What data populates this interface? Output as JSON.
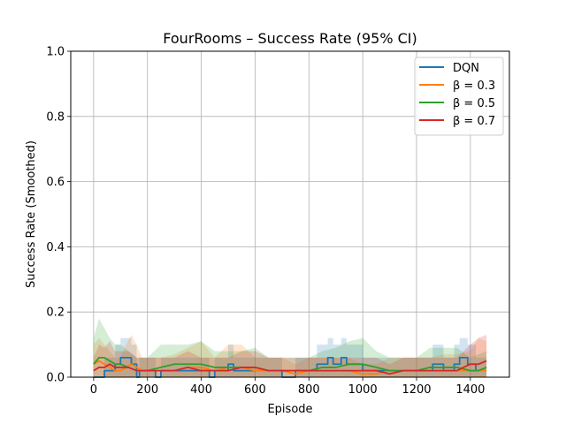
{
  "chart_data": {
    "type": "line",
    "title": "FourRooms – Success Rate (95% CI)",
    "xlabel": "Episode",
    "ylabel": "Success Rate (Smoothed)",
    "xlim": [
      -85,
      1545
    ],
    "ylim": [
      0,
      1.0
    ],
    "xticks": [
      0,
      200,
      400,
      600,
      800,
      1000,
      1200,
      1400
    ],
    "yticks": [
      0.0,
      0.2,
      0.4,
      0.6,
      0.8,
      1.0
    ],
    "xtick_labels": [
      "0",
      "200",
      "400",
      "600",
      "800",
      "1000",
      "1200",
      "1400"
    ],
    "ytick_labels": [
      "0.0",
      "0.2",
      "0.4",
      "0.6",
      "0.8",
      "1.0"
    ],
    "grid": true,
    "legend_position": "top-right",
    "series": [
      {
        "name": "DQN",
        "color": "#1f77b4",
        "step": true,
        "x": [
          0,
          30,
          40,
          80,
          100,
          140,
          160,
          170,
          200,
          230,
          250,
          300,
          350,
          400,
          430,
          450,
          500,
          520,
          560,
          600,
          650,
          700,
          750,
          800,
          830,
          870,
          890,
          920,
          940,
          980,
          1000,
          1050,
          1100,
          1150,
          1200,
          1230,
          1260,
          1300,
          1340,
          1360,
          1390,
          1420,
          1440,
          1460
        ],
        "y": [
          0.0,
          0.0,
          0.02,
          0.04,
          0.06,
          0.04,
          0.0,
          0.02,
          0.02,
          0.0,
          0.02,
          0.02,
          0.02,
          0.02,
          0.0,
          0.02,
          0.04,
          0.02,
          0.02,
          0.02,
          0.02,
          0.0,
          0.02,
          0.02,
          0.04,
          0.06,
          0.04,
          0.06,
          0.04,
          0.04,
          0.02,
          0.02,
          0.02,
          0.02,
          0.02,
          0.02,
          0.04,
          0.02,
          0.04,
          0.06,
          0.04,
          0.02,
          0.02,
          0.02
        ],
        "ci_upper": [
          0.0,
          0.0,
          0.06,
          0.1,
          0.12,
          0.1,
          0.0,
          0.06,
          0.06,
          0.0,
          0.06,
          0.06,
          0.06,
          0.06,
          0.0,
          0.06,
          0.1,
          0.06,
          0.06,
          0.06,
          0.06,
          0.0,
          0.06,
          0.06,
          0.1,
          0.12,
          0.1,
          0.12,
          0.1,
          0.1,
          0.06,
          0.06,
          0.06,
          0.06,
          0.06,
          0.06,
          0.1,
          0.06,
          0.1,
          0.12,
          0.1,
          0.06,
          0.06,
          0.06
        ],
        "ci_lower": [
          0.0,
          0.0,
          0.0,
          0.0,
          0.0,
          0.0,
          0.0,
          0.0,
          0.0,
          0.0,
          0.0,
          0.0,
          0.0,
          0.0,
          0.0,
          0.0,
          0.0,
          0.0,
          0.0,
          0.0,
          0.0,
          0.0,
          0.0,
          0.0,
          0.0,
          0.0,
          0.0,
          0.0,
          0.0,
          0.0,
          0.0,
          0.0,
          0.0,
          0.0,
          0.0,
          0.0,
          0.0,
          0.0,
          0.0,
          0.0,
          0.0,
          0.0,
          0.0,
          0.0
        ]
      },
      {
        "name": "β = 0.3",
        "color": "#ff7f0e",
        "step": false,
        "x": [
          0,
          20,
          40,
          60,
          80,
          100,
          120,
          140,
          160,
          180,
          200,
          250,
          300,
          350,
          400,
          450,
          500,
          550,
          600,
          650,
          700,
          750,
          800,
          850,
          900,
          950,
          1000,
          1050,
          1100,
          1150,
          1200,
          1250,
          1300,
          1350,
          1400,
          1430,
          1460
        ],
        "y": [
          0.04,
          0.05,
          0.04,
          0.03,
          0.02,
          0.02,
          0.03,
          0.04,
          0.03,
          0.02,
          0.02,
          0.02,
          0.02,
          0.03,
          0.03,
          0.02,
          0.03,
          0.03,
          0.02,
          0.02,
          0.02,
          0.01,
          0.02,
          0.02,
          0.02,
          0.02,
          0.01,
          0.01,
          0.02,
          0.02,
          0.02,
          0.02,
          0.02,
          0.02,
          0.02,
          0.02,
          0.02
        ],
        "ci_upper": [
          0.1,
          0.12,
          0.1,
          0.08,
          0.06,
          0.06,
          0.1,
          0.13,
          0.1,
          0.06,
          0.06,
          0.06,
          0.07,
          0.09,
          0.11,
          0.06,
          0.1,
          0.1,
          0.06,
          0.06,
          0.06,
          0.04,
          0.06,
          0.06,
          0.06,
          0.06,
          0.04,
          0.04,
          0.06,
          0.06,
          0.06,
          0.06,
          0.07,
          0.07,
          0.08,
          0.12,
          0.11
        ],
        "ci_lower": [
          0.0,
          0.0,
          0.0,
          0.0,
          0.0,
          0.0,
          0.0,
          0.0,
          0.0,
          0.0,
          0.0,
          0.0,
          0.0,
          0.0,
          0.0,
          0.0,
          0.0,
          0.0,
          0.0,
          0.0,
          0.0,
          0.0,
          0.0,
          0.0,
          0.0,
          0.0,
          0.0,
          0.0,
          0.0,
          0.0,
          0.0,
          0.0,
          0.0,
          0.0,
          0.0,
          0.0,
          0.0
        ]
      },
      {
        "name": "β = 0.5",
        "color": "#2ca02c",
        "step": false,
        "x": [
          0,
          20,
          40,
          60,
          80,
          100,
          130,
          160,
          200,
          250,
          300,
          350,
          400,
          450,
          500,
          550,
          600,
          650,
          700,
          750,
          800,
          850,
          900,
          950,
          1000,
          1050,
          1100,
          1150,
          1200,
          1250,
          1300,
          1350,
          1400,
          1430,
          1460
        ],
        "y": [
          0.04,
          0.06,
          0.06,
          0.05,
          0.04,
          0.04,
          0.03,
          0.02,
          0.02,
          0.03,
          0.04,
          0.04,
          0.04,
          0.03,
          0.03,
          0.03,
          0.03,
          0.02,
          0.02,
          0.02,
          0.02,
          0.03,
          0.03,
          0.04,
          0.04,
          0.03,
          0.02,
          0.02,
          0.02,
          0.03,
          0.03,
          0.03,
          0.02,
          0.02,
          0.03
        ],
        "ci_upper": [
          0.12,
          0.18,
          0.15,
          0.12,
          0.1,
          0.1,
          0.08,
          0.06,
          0.06,
          0.1,
          0.1,
          0.1,
          0.11,
          0.08,
          0.08,
          0.08,
          0.09,
          0.06,
          0.06,
          0.06,
          0.06,
          0.08,
          0.09,
          0.11,
          0.12,
          0.08,
          0.06,
          0.06,
          0.06,
          0.09,
          0.09,
          0.09,
          0.06,
          0.07,
          0.08
        ],
        "ci_lower": [
          0.0,
          0.0,
          0.0,
          0.0,
          0.0,
          0.0,
          0.0,
          0.0,
          0.0,
          0.0,
          0.0,
          0.0,
          0.0,
          0.0,
          0.0,
          0.0,
          0.0,
          0.0,
          0.0,
          0.0,
          0.0,
          0.0,
          0.0,
          0.0,
          0.0,
          0.0,
          0.0,
          0.0,
          0.0,
          0.0,
          0.0,
          0.0,
          0.0,
          0.0,
          0.0
        ]
      },
      {
        "name": "β = 0.7",
        "color": "#d62728",
        "step": false,
        "x": [
          0,
          20,
          40,
          60,
          80,
          100,
          130,
          160,
          200,
          250,
          300,
          350,
          400,
          450,
          500,
          550,
          600,
          650,
          700,
          750,
          800,
          850,
          900,
          950,
          1000,
          1050,
          1100,
          1150,
          1200,
          1250,
          1300,
          1350,
          1400,
          1430,
          1460
        ],
        "y": [
          0.02,
          0.03,
          0.03,
          0.04,
          0.03,
          0.03,
          0.03,
          0.02,
          0.02,
          0.02,
          0.02,
          0.03,
          0.02,
          0.02,
          0.02,
          0.03,
          0.03,
          0.02,
          0.02,
          0.02,
          0.02,
          0.02,
          0.02,
          0.02,
          0.02,
          0.02,
          0.01,
          0.02,
          0.02,
          0.02,
          0.02,
          0.02,
          0.04,
          0.04,
          0.05
        ],
        "ci_upper": [
          0.06,
          0.1,
          0.09,
          0.11,
          0.08,
          0.08,
          0.08,
          0.06,
          0.06,
          0.06,
          0.06,
          0.08,
          0.06,
          0.06,
          0.06,
          0.08,
          0.08,
          0.06,
          0.06,
          0.06,
          0.06,
          0.06,
          0.06,
          0.06,
          0.06,
          0.06,
          0.04,
          0.06,
          0.06,
          0.06,
          0.06,
          0.06,
          0.1,
          0.12,
          0.13
        ],
        "ci_lower": [
          0.0,
          0.0,
          0.0,
          0.0,
          0.0,
          0.0,
          0.0,
          0.0,
          0.0,
          0.0,
          0.0,
          0.0,
          0.0,
          0.0,
          0.0,
          0.0,
          0.0,
          0.0,
          0.0,
          0.0,
          0.0,
          0.0,
          0.0,
          0.0,
          0.0,
          0.0,
          0.0,
          0.0,
          0.0,
          0.0,
          0.0,
          0.0,
          0.0,
          0.0,
          0.0
        ]
      }
    ]
  }
}
